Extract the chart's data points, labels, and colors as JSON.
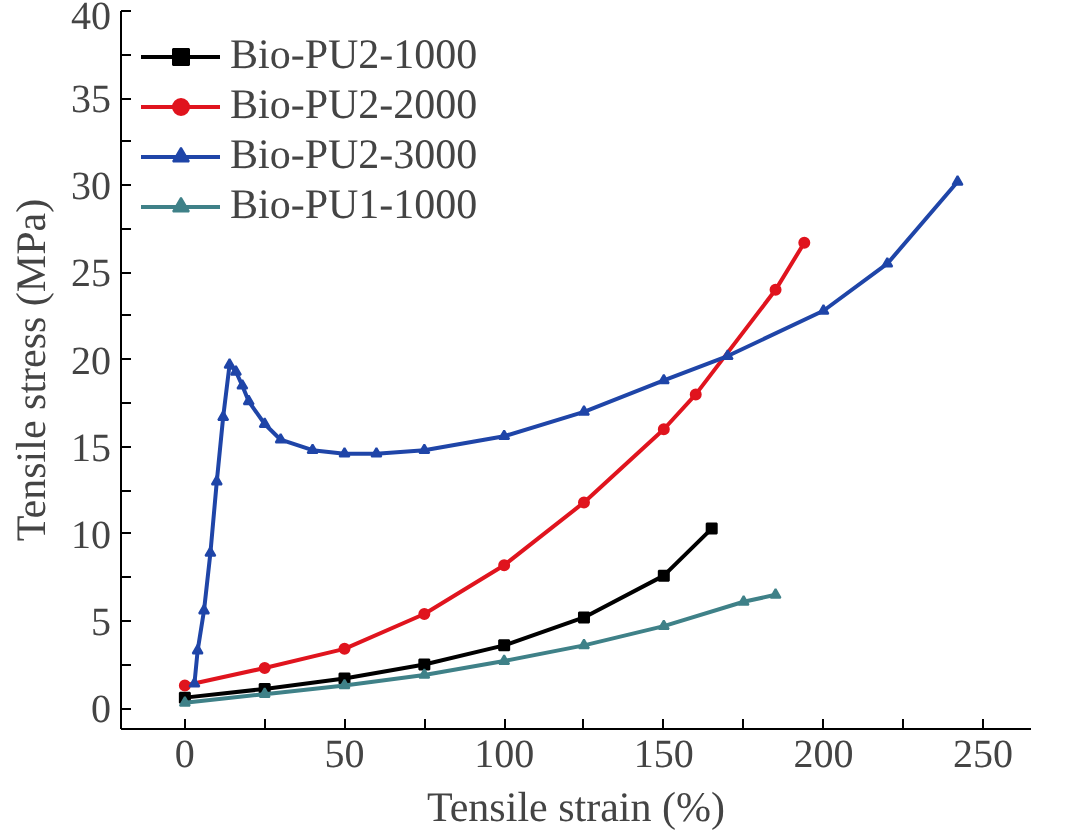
{
  "chart_data": {
    "type": "line",
    "xlabel": "Tensile strain (%)",
    "ylabel": "Tensile stress (MPa)",
    "xlim": [
      -20,
      265
    ],
    "ylim": [
      -1.2,
      40
    ],
    "xticks": [
      0,
      {
        "value": 25,
        "label": null
      },
      50,
      {
        "value": 75,
        "label": null
      },
      100,
      {
        "value": 125,
        "label": null
      },
      150,
      {
        "value": 175,
        "label": null
      },
      200,
      {
        "value": 225,
        "label": null
      },
      250
    ],
    "yticks": [
      0,
      {
        "value": 2.5,
        "label": null
      },
      5,
      {
        "value": 7.5,
        "label": null
      },
      10,
      {
        "value": 12.5,
        "label": null
      },
      15,
      {
        "value": 17.5,
        "label": null
      },
      20,
      {
        "value": 22.5,
        "label": null
      },
      25,
      {
        "value": 27.5,
        "label": null
      },
      30,
      {
        "value": 32.5,
        "label": null
      },
      35,
      {
        "value": 37.5,
        "label": null
      },
      40
    ],
    "grid": false,
    "legend": "top left",
    "line_style": "solid",
    "series": [
      {
        "name": "Bio-PU2-1000",
        "color": "#000000",
        "marker": "square",
        "x": [
          0,
          25,
          50,
          75,
          100,
          125,
          150,
          165
        ],
        "values": [
          0.6,
          1.1,
          1.7,
          2.5,
          3.6,
          5.2,
          7.6,
          10.3
        ]
      },
      {
        "name": "Bio-PU2-2000",
        "color": "#e0141e",
        "marker": "circle",
        "x": [
          0,
          25,
          50,
          75,
          100,
          125,
          150,
          160,
          185,
          194
        ],
        "values": [
          1.3,
          2.3,
          3.4,
          5.4,
          8.2,
          11.8,
          16.0,
          18.0,
          24.0,
          26.7
        ]
      },
      {
        "name": "Bio-PU2-3000",
        "color": "#1f45a8",
        "marker": "triangle",
        "x": [
          3,
          4,
          6,
          8,
          10,
          12,
          14,
          16,
          18,
          20,
          25,
          30,
          40,
          50,
          60,
          75,
          100,
          125,
          150,
          170,
          200,
          220,
          242
        ],
        "values": [
          1.4,
          3.3,
          5.6,
          8.9,
          13.0,
          16.7,
          19.7,
          19.3,
          18.5,
          17.6,
          16.3,
          15.4,
          14.8,
          14.6,
          14.6,
          14.8,
          15.6,
          17.0,
          18.8,
          20.2,
          22.8,
          25.5,
          30.2
        ]
      },
      {
        "name": "Bio-PU1-1000",
        "color": "#3f8188",
        "marker": "triangle",
        "x": [
          0,
          25,
          50,
          75,
          100,
          125,
          150,
          175,
          185
        ],
        "values": [
          0.3,
          0.8,
          1.3,
          1.9,
          2.7,
          3.6,
          4.7,
          6.1,
          6.5
        ]
      }
    ]
  }
}
